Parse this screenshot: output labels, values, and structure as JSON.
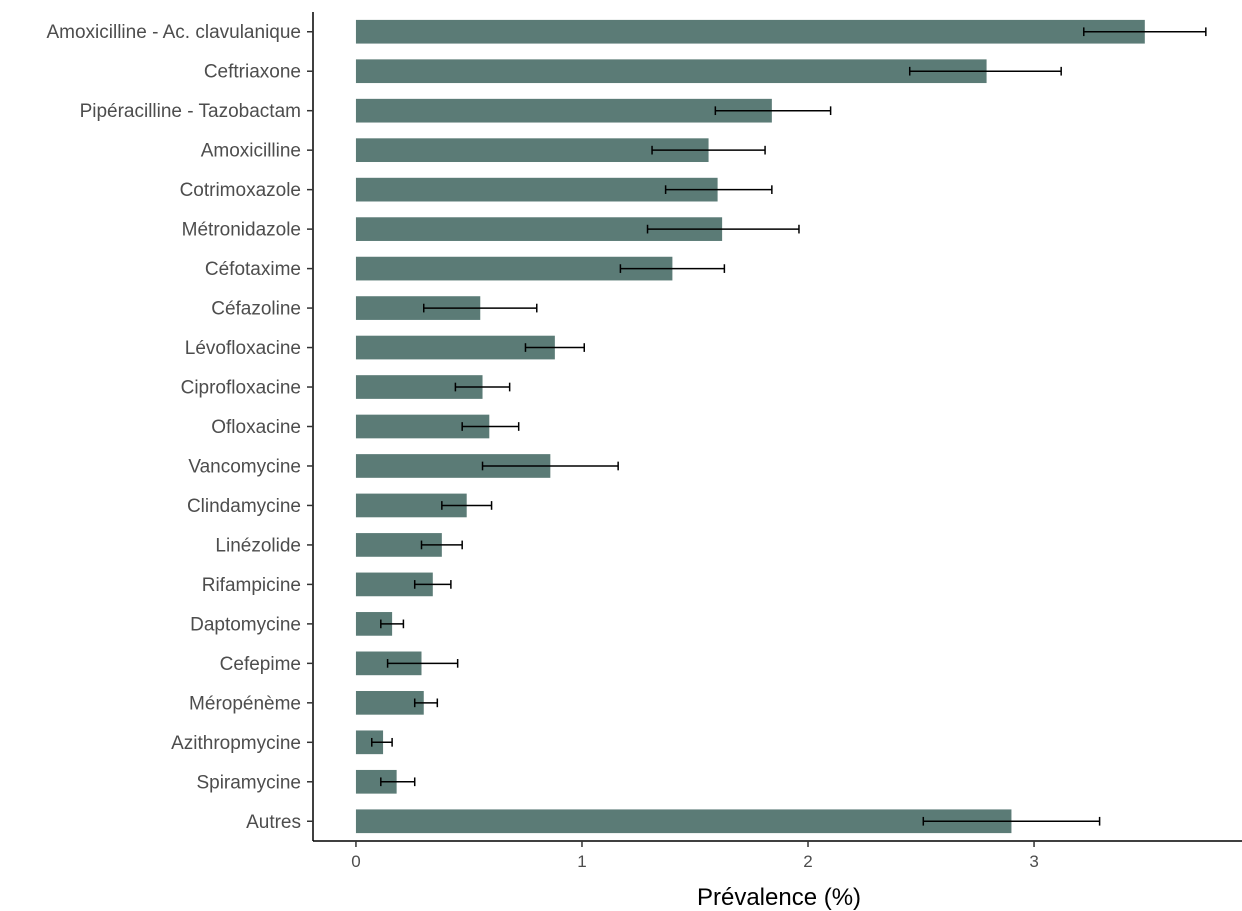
{
  "chart_data": {
    "type": "bar",
    "orientation": "horizontal",
    "xlabel": "Prévalence (%)",
    "ylabel": "",
    "xlim": [
      -0.19,
      3.92
    ],
    "xticks": [
      "0",
      "1",
      "2",
      "3"
    ],
    "bar_color": "#5b7b76",
    "error_color": "#000000",
    "grid": false,
    "categories": [
      "Amoxicilline - Ac. clavulanique",
      "Ceftriaxone",
      "Pipéracilline - Tazobactam",
      "Amoxicilline",
      "Cotrimoxazole",
      "Métronidazole",
      "Céfotaxime",
      "Céfazoline",
      "Lévofloxacine",
      "Ciprofloxacine",
      "Ofloxacine",
      "Vancomycine",
      "Clindamycine",
      "Linézolide",
      "Rifampicine",
      "Daptomycine",
      "Cefepime",
      "Méropénème",
      "Azithropmycine",
      "Spiramycine",
      "Autres"
    ],
    "values": [
      3.49,
      2.79,
      1.84,
      1.56,
      1.6,
      1.62,
      1.4,
      0.55,
      0.88,
      0.56,
      0.59,
      0.86,
      0.49,
      0.38,
      0.34,
      0.16,
      0.29,
      0.3,
      0.12,
      0.18,
      2.9
    ],
    "error_low": [
      3.22,
      2.45,
      1.59,
      1.31,
      1.37,
      1.29,
      1.17,
      0.3,
      0.75,
      0.44,
      0.47,
      0.56,
      0.38,
      0.29,
      0.26,
      0.11,
      0.14,
      0.26,
      0.07,
      0.11,
      2.51
    ],
    "error_high": [
      3.76,
      3.12,
      2.1,
      1.81,
      1.84,
      1.96,
      1.63,
      0.8,
      1.01,
      0.68,
      0.72,
      1.16,
      0.6,
      0.47,
      0.42,
      0.21,
      0.45,
      0.36,
      0.16,
      0.26,
      3.29
    ]
  }
}
